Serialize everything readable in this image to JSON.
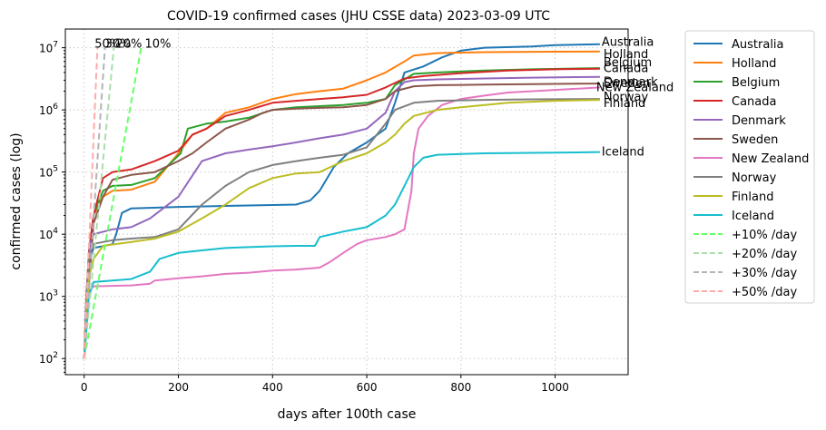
{
  "chart_data": {
    "type": "line",
    "title": "COVID-19 confirmed cases (JHU CSSE data) 2023-03-09 UTC",
    "xlabel": "days after 100th case",
    "ylabel": "confirmed cases (log)",
    "xlim": [
      -40,
      1155
    ],
    "ylim": [
      55,
      20000000
    ],
    "yscale": "log",
    "grid": true,
    "legend_position": "outside-right",
    "x_ticks": [
      {
        "value": 0,
        "label": "0"
      },
      {
        "value": 200,
        "label": "200"
      },
      {
        "value": 400,
        "label": "400"
      },
      {
        "value": 600,
        "label": "600"
      },
      {
        "value": 800,
        "label": "800"
      },
      {
        "value": 1000,
        "label": "1000"
      }
    ],
    "y_ticks": [
      {
        "value": 100,
        "base": "10",
        "exp": "2"
      },
      {
        "value": 1000,
        "base": "10",
        "exp": "3"
      },
      {
        "value": 10000,
        "base": "10",
        "exp": "4"
      },
      {
        "value": 100000,
        "base": "10",
        "exp": "5"
      },
      {
        "value": 1000000,
        "base": "10",
        "exp": "6"
      },
      {
        "value": 10000000,
        "base": "10",
        "exp": "7"
      }
    ],
    "series": [
      {
        "name": "Australia",
        "color": "#1f77b4",
        "end_label": "Australia",
        "points": [
          [
            0,
            100
          ],
          [
            5,
            700
          ],
          [
            12,
            4000
          ],
          [
            20,
            6000
          ],
          [
            60,
            6900
          ],
          [
            68,
            10000
          ],
          [
            80,
            22000
          ],
          [
            100,
            26000
          ],
          [
            200,
            27500
          ],
          [
            300,
            28500
          ],
          [
            400,
            29500
          ],
          [
            450,
            30000
          ],
          [
            480,
            35000
          ],
          [
            500,
            50000
          ],
          [
            530,
            120000
          ],
          [
            560,
            200000
          ],
          [
            600,
            300000
          ],
          [
            640,
            500000
          ],
          [
            660,
            1300000
          ],
          [
            680,
            4000000
          ],
          [
            720,
            5000000
          ],
          [
            760,
            7000000
          ],
          [
            800,
            9000000
          ],
          [
            850,
            10000000
          ],
          [
            950,
            10500000
          ],
          [
            1000,
            11000000
          ],
          [
            1095,
            11400000
          ]
        ]
      },
      {
        "name": "Holland",
        "color": "#ff7f0e",
        "end_label": "Holland",
        "points": [
          [
            0,
            100
          ],
          [
            5,
            1000
          ],
          [
            10,
            5000
          ],
          [
            20,
            20000
          ],
          [
            40,
            40000
          ],
          [
            60,
            50000
          ],
          [
            100,
            52000
          ],
          [
            150,
            70000
          ],
          [
            200,
            200000
          ],
          [
            230,
            400000
          ],
          [
            260,
            500000
          ],
          [
            300,
            900000
          ],
          [
            350,
            1100000
          ],
          [
            400,
            1500000
          ],
          [
            450,
            1800000
          ],
          [
            500,
            2000000
          ],
          [
            550,
            2200000
          ],
          [
            600,
            3000000
          ],
          [
            640,
            4000000
          ],
          [
            680,
            6000000
          ],
          [
            700,
            7500000
          ],
          [
            750,
            8200000
          ],
          [
            850,
            8500000
          ],
          [
            950,
            8600000
          ],
          [
            1095,
            8700000
          ]
        ]
      },
      {
        "name": "Belgium",
        "color": "#2ca02c",
        "end_label": "Belgium",
        "points": [
          [
            0,
            100
          ],
          [
            5,
            900
          ],
          [
            10,
            5000
          ],
          [
            20,
            20000
          ],
          [
            40,
            50000
          ],
          [
            60,
            60000
          ],
          [
            100,
            62000
          ],
          [
            150,
            80000
          ],
          [
            205,
            200000
          ],
          [
            220,
            500000
          ],
          [
            260,
            600000
          ],
          [
            300,
            650000
          ],
          [
            350,
            750000
          ],
          [
            400,
            1000000
          ],
          [
            450,
            1100000
          ],
          [
            500,
            1150000
          ],
          [
            550,
            1200000
          ],
          [
            600,
            1300000
          ],
          [
            640,
            1500000
          ],
          [
            660,
            2500000
          ],
          [
            700,
            3800000
          ],
          [
            750,
            4000000
          ],
          [
            850,
            4300000
          ],
          [
            950,
            4500000
          ],
          [
            1095,
            4700000
          ]
        ]
      },
      {
        "name": "Canada",
        "color": "#d62728",
        "end_label": "Canada",
        "points": [
          [
            0,
            100
          ],
          [
            5,
            1000
          ],
          [
            10,
            5000
          ],
          [
            20,
            20000
          ],
          [
            40,
            80000
          ],
          [
            60,
            100000
          ],
          [
            100,
            110000
          ],
          [
            150,
            150000
          ],
          [
            200,
            220000
          ],
          [
            230,
            400000
          ],
          [
            260,
            500000
          ],
          [
            300,
            800000
          ],
          [
            350,
            1000000
          ],
          [
            400,
            1300000
          ],
          [
            450,
            1400000
          ],
          [
            500,
            1500000
          ],
          [
            550,
            1600000
          ],
          [
            600,
            1750000
          ],
          [
            640,
            2300000
          ],
          [
            680,
            3200000
          ],
          [
            720,
            3500000
          ],
          [
            800,
            3900000
          ],
          [
            900,
            4300000
          ],
          [
            1000,
            4500000
          ],
          [
            1095,
            4600000
          ]
        ]
      },
      {
        "name": "Denmark",
        "color": "#9467bd",
        "end_label": "Denmark",
        "points": [
          [
            0,
            100
          ],
          [
            5,
            1200
          ],
          [
            12,
            7000
          ],
          [
            20,
            10000
          ],
          [
            60,
            12000
          ],
          [
            100,
            13000
          ],
          [
            140,
            18000
          ],
          [
            200,
            40000
          ],
          [
            250,
            150000
          ],
          [
            300,
            200000
          ],
          [
            350,
            230000
          ],
          [
            400,
            260000
          ],
          [
            450,
            300000
          ],
          [
            500,
            350000
          ],
          [
            550,
            400000
          ],
          [
            600,
            500000
          ],
          [
            640,
            900000
          ],
          [
            660,
            2000000
          ],
          [
            680,
            2800000
          ],
          [
            700,
            3000000
          ],
          [
            750,
            3100000
          ],
          [
            850,
            3200000
          ],
          [
            950,
            3300000
          ],
          [
            1095,
            3400000
          ]
        ]
      },
      {
        "name": "Sweden",
        "color": "#8c564b",
        "end_label": "Sweden",
        "points": [
          [
            0,
            100
          ],
          [
            5,
            600
          ],
          [
            10,
            1500
          ],
          [
            20,
            15000
          ],
          [
            40,
            40000
          ],
          [
            60,
            75000
          ],
          [
            100,
            90000
          ],
          [
            150,
            100000
          ],
          [
            200,
            150000
          ],
          [
            230,
            200000
          ],
          [
            260,
            300000
          ],
          [
            300,
            500000
          ],
          [
            350,
            700000
          ],
          [
            380,
            900000
          ],
          [
            400,
            1000000
          ],
          [
            450,
            1050000
          ],
          [
            500,
            1080000
          ],
          [
            550,
            1100000
          ],
          [
            600,
            1200000
          ],
          [
            640,
            1500000
          ],
          [
            660,
            2000000
          ],
          [
            700,
            2400000
          ],
          [
            750,
            2500000
          ],
          [
            850,
            2550000
          ],
          [
            950,
            2600000
          ],
          [
            1095,
            2650000
          ]
        ]
      },
      {
        "name": "New Zealand",
        "color": "#e377c2",
        "end_label": "New Zealand",
        "points": [
          [
            0,
            100
          ],
          [
            5,
            500
          ],
          [
            10,
            1200
          ],
          [
            20,
            1450
          ],
          [
            100,
            1500
          ],
          [
            140,
            1600
          ],
          [
            150,
            1800
          ],
          [
            200,
            1950
          ],
          [
            250,
            2100
          ],
          [
            300,
            2300
          ],
          [
            350,
            2400
          ],
          [
            400,
            2600
          ],
          [
            450,
            2700
          ],
          [
            500,
            2900
          ],
          [
            520,
            3500
          ],
          [
            550,
            5000
          ],
          [
            580,
            7000
          ],
          [
            600,
            8000
          ],
          [
            640,
            9000
          ],
          [
            660,
            10000
          ],
          [
            680,
            12000
          ],
          [
            695,
            50000
          ],
          [
            700,
            200000
          ],
          [
            710,
            500000
          ],
          [
            730,
            800000
          ],
          [
            760,
            1200000
          ],
          [
            800,
            1500000
          ],
          [
            850,
            1700000
          ],
          [
            900,
            1900000
          ],
          [
            1000,
            2100000
          ],
          [
            1095,
            2300000
          ]
        ]
      },
      {
        "name": "Norway",
        "color": "#7f7f7f",
        "end_label": "Norway",
        "points": [
          [
            0,
            100
          ],
          [
            5,
            1000
          ],
          [
            10,
            4000
          ],
          [
            20,
            7000
          ],
          [
            60,
            8000
          ],
          [
            100,
            8500
          ],
          [
            150,
            9000
          ],
          [
            200,
            12000
          ],
          [
            250,
            30000
          ],
          [
            300,
            60000
          ],
          [
            350,
            100000
          ],
          [
            400,
            130000
          ],
          [
            450,
            150000
          ],
          [
            500,
            170000
          ],
          [
            550,
            190000
          ],
          [
            600,
            250000
          ],
          [
            640,
            600000
          ],
          [
            660,
            1000000
          ],
          [
            700,
            1300000
          ],
          [
            750,
            1400000
          ],
          [
            850,
            1450000
          ],
          [
            950,
            1480000
          ],
          [
            1095,
            1500000
          ]
        ]
      },
      {
        "name": "Finland",
        "color": "#bcbd22",
        "end_label": "Finland",
        "points": [
          [
            0,
            100
          ],
          [
            5,
            500
          ],
          [
            10,
            2000
          ],
          [
            20,
            4000
          ],
          [
            40,
            6500
          ],
          [
            100,
            7500
          ],
          [
            150,
            8500
          ],
          [
            200,
            11000
          ],
          [
            250,
            18000
          ],
          [
            300,
            30000
          ],
          [
            350,
            55000
          ],
          [
            400,
            80000
          ],
          [
            450,
            95000
          ],
          [
            500,
            100000
          ],
          [
            550,
            150000
          ],
          [
            600,
            200000
          ],
          [
            640,
            300000
          ],
          [
            660,
            400000
          ],
          [
            680,
            600000
          ],
          [
            700,
            800000
          ],
          [
            750,
            1000000
          ],
          [
            800,
            1100000
          ],
          [
            900,
            1300000
          ],
          [
            1000,
            1400000
          ],
          [
            1095,
            1450000
          ]
        ]
      },
      {
        "name": "Iceland",
        "color": "#17becf",
        "end_label": "Iceland",
        "points": [
          [
            0,
            100
          ],
          [
            5,
            300
          ],
          [
            10,
            1000
          ],
          [
            20,
            1700
          ],
          [
            60,
            1800
          ],
          [
            100,
            1900
          ],
          [
            140,
            2500
          ],
          [
            160,
            4000
          ],
          [
            200,
            5000
          ],
          [
            250,
            5500
          ],
          [
            300,
            6000
          ],
          [
            350,
            6200
          ],
          [
            400,
            6400
          ],
          [
            450,
            6500
          ],
          [
            490,
            6500
          ],
          [
            500,
            9000
          ],
          [
            550,
            11000
          ],
          [
            600,
            13000
          ],
          [
            640,
            20000
          ],
          [
            660,
            30000
          ],
          [
            680,
            60000
          ],
          [
            700,
            120000
          ],
          [
            720,
            170000
          ],
          [
            750,
            190000
          ],
          [
            850,
            200000
          ],
          [
            1000,
            205000
          ],
          [
            1095,
            210000
          ]
        ]
      },
      {
        "name": "+10% /day",
        "color": "#66ff66",
        "dashed": true,
        "end_label": "10%",
        "points": [
          [
            0,
            100
          ],
          [
            121,
            10000000
          ]
        ]
      },
      {
        "name": "+20% /day",
        "color": "#aadeaa",
        "dashed": true,
        "end_label": "20%",
        "points": [
          [
            0,
            100
          ],
          [
            63,
            10000000
          ]
        ]
      },
      {
        "name": "+30% /day",
        "color": "#b4b4b4",
        "dashed": true,
        "end_label": "30%",
        "points": [
          [
            0,
            100
          ],
          [
            44,
            10000000
          ]
        ]
      },
      {
        "name": "+50% /day",
        "color": "#ffaaaa",
        "dashed": true,
        "end_label": "50%",
        "points": [
          [
            0,
            100
          ],
          [
            28,
            10000000
          ]
        ]
      }
    ]
  }
}
